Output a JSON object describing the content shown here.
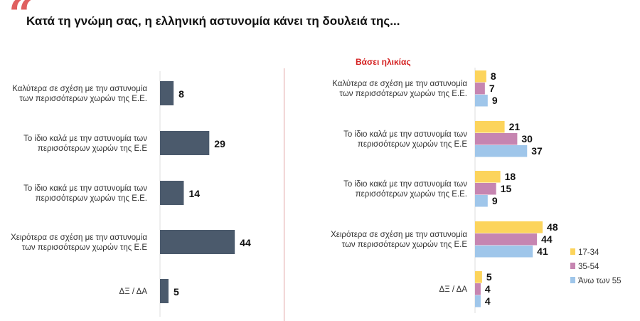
{
  "header": {
    "quote_mark": "“",
    "title": "Κατά τη γνώμη σας, η ελληνική αστυνομία κάνει τη δουλειά της...",
    "subtitle": "Βάσει ηλικίας"
  },
  "chart_data": [
    {
      "type": "bar",
      "orientation": "horizontal",
      "title": "Κατά τη γνώμη σας, η ελληνική αστυνομία κάνει τη δουλειά της...",
      "categories": [
        [
          "Καλύτερα σε σχέση με την αστυνομία",
          "των περισσότερων χωρών της Ε.Ε."
        ],
        [
          "Το ίδιο καλά με την αστυνομία των",
          "περισσότερων χωρών της Ε.Ε"
        ],
        [
          "Το ίδιο κακά με την αστυνομία των",
          "περισσότερων χωρών της Ε.Ε."
        ],
        [
          "Χειρότερα σε σχέση με την αστυνομία",
          "των περισσότερων χωρών της Ε.Ε"
        ],
        [
          "ΔΞ / ΔΑ"
        ]
      ],
      "values": [
        8,
        29,
        14,
        44,
        5
      ],
      "color": "#4b5a6c"
    },
    {
      "type": "bar",
      "orientation": "horizontal",
      "title": "Βάσει ηλικίας",
      "categories": [
        [
          "Καλύτερα σε σχέση με την αστυνομία",
          "των περισσότερων χωρών της Ε.Ε."
        ],
        [
          "Το ίδιο καλά με την αστυνομία των",
          "περισσότερων χωρών της Ε.Ε"
        ],
        [
          "Το ίδιο κακά με την αστυνομία των",
          "περισσότερων χωρών της Ε.Ε."
        ],
        [
          "Χειρότερα σε σχέση με την αστυνομία",
          "των περισσότερων χωρών της Ε.Ε"
        ],
        [
          "ΔΞ / ΔΑ"
        ]
      ],
      "series": [
        {
          "name": "17-34",
          "values": [
            8,
            21,
            18,
            48,
            5
          ],
          "color": "#fcd45c"
        },
        {
          "name": "35-54",
          "values": [
            7,
            30,
            15,
            44,
            4
          ],
          "color": "#c685b1"
        },
        {
          "name": "Άνω των 55",
          "values": [
            9,
            37,
            9,
            41,
            4
          ],
          "color": "#9fc6ea"
        }
      ],
      "legend": "bottom-right"
    }
  ]
}
